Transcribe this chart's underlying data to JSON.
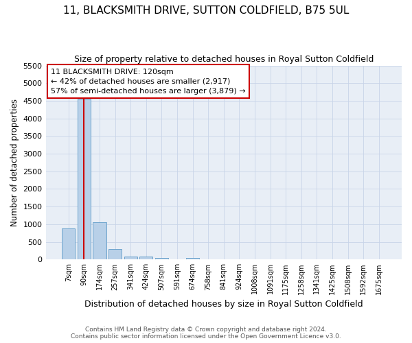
{
  "title": "11, BLACKSMITH DRIVE, SUTTON COLDFIELD, B75 5UL",
  "subtitle": "Size of property relative to detached houses in Royal Sutton Coldfield",
  "xlabel": "Distribution of detached houses by size in Royal Sutton Coldfield",
  "ylabel": "Number of detached properties",
  "footer_line1": "Contains HM Land Registry data © Crown copyright and database right 2024.",
  "footer_line2": "Contains public sector information licensed under the Open Government Licence v3.0.",
  "bar_labels": [
    "7sqm",
    "90sqm",
    "174sqm",
    "257sqm",
    "341sqm",
    "424sqm",
    "507sqm",
    "591sqm",
    "674sqm",
    "758sqm",
    "841sqm",
    "924sqm",
    "1008sqm",
    "1091sqm",
    "1175sqm",
    "1258sqm",
    "1341sqm",
    "1425sqm",
    "1508sqm",
    "1592sqm",
    "1675sqm"
  ],
  "bar_values": [
    880,
    4560,
    1060,
    290,
    90,
    85,
    50,
    0,
    50,
    0,
    0,
    0,
    0,
    0,
    0,
    0,
    0,
    0,
    0,
    0,
    0
  ],
  "bar_color": "#b8d0e8",
  "bar_edge_color": "#6ba3cc",
  "ylim": [
    0,
    5500
  ],
  "yticks": [
    0,
    500,
    1000,
    1500,
    2000,
    2500,
    3000,
    3500,
    4000,
    4500,
    5000,
    5500
  ],
  "property_bin_index": 1,
  "vline_color": "#cc0000",
  "annotation_line1": "11 BLACKSMITH DRIVE: 120sqm",
  "annotation_line2": "← 42% of detached houses are smaller (2,917)",
  "annotation_line3": "57% of semi-detached houses are larger (3,879) →",
  "annotation_box_color": "#ffffff",
  "annotation_border_color": "#cc0000",
  "grid_color": "#c8d4e8",
  "background_color": "#e8eef6"
}
